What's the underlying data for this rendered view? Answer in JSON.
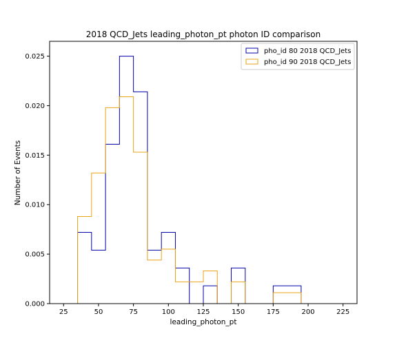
{
  "chart_data": {
    "type": "step-histogram",
    "title": "2018 QCD_Jets leading_photon_pt photon ID comparison",
    "xlabel": "leading_photon_pt",
    "ylabel": "Number of Events",
    "xlim": [
      15,
      235
    ],
    "ylim": [
      0,
      0.0265
    ],
    "xticks": [
      25,
      50,
      75,
      100,
      125,
      150,
      175,
      200,
      225
    ],
    "xtick_labels": [
      "25",
      "50",
      "75",
      "100",
      "125",
      "150",
      "175",
      "200",
      "225"
    ],
    "yticks": [
      0,
      0.005,
      0.01,
      0.015,
      0.02,
      0.025
    ],
    "ytick_labels": [
      "0.000",
      "0.005",
      "0.010",
      "0.015",
      "0.020",
      "0.025"
    ],
    "bin_edges": [
      35,
      45,
      55,
      65,
      75,
      85,
      95,
      105,
      115,
      125,
      135,
      145,
      155,
      165,
      175,
      185,
      195
    ],
    "series": [
      {
        "name": "pho_id 80 2018 QCD_Jets",
        "color": "#0000aa",
        "values": [
          0.0072,
          0.0054,
          0.0161,
          0.025,
          0.0214,
          0.0054,
          0.0072,
          0.0036,
          0.0,
          0.0018,
          0.0,
          0.0036,
          0.0,
          0.0,
          0.0018,
          0.0018
        ]
      },
      {
        "name": "pho_id 90 2018 QCD_Jets",
        "color": "#e8a317",
        "values": [
          0.0088,
          0.0132,
          0.0198,
          0.0209,
          0.0153,
          0.0044,
          0.0055,
          0.0022,
          0.0022,
          0.0033,
          0.0,
          0.0022,
          0.0,
          0.0,
          0.0011,
          0.0011
        ]
      }
    ],
    "legend_position": "top-right",
    "grid": false
  }
}
